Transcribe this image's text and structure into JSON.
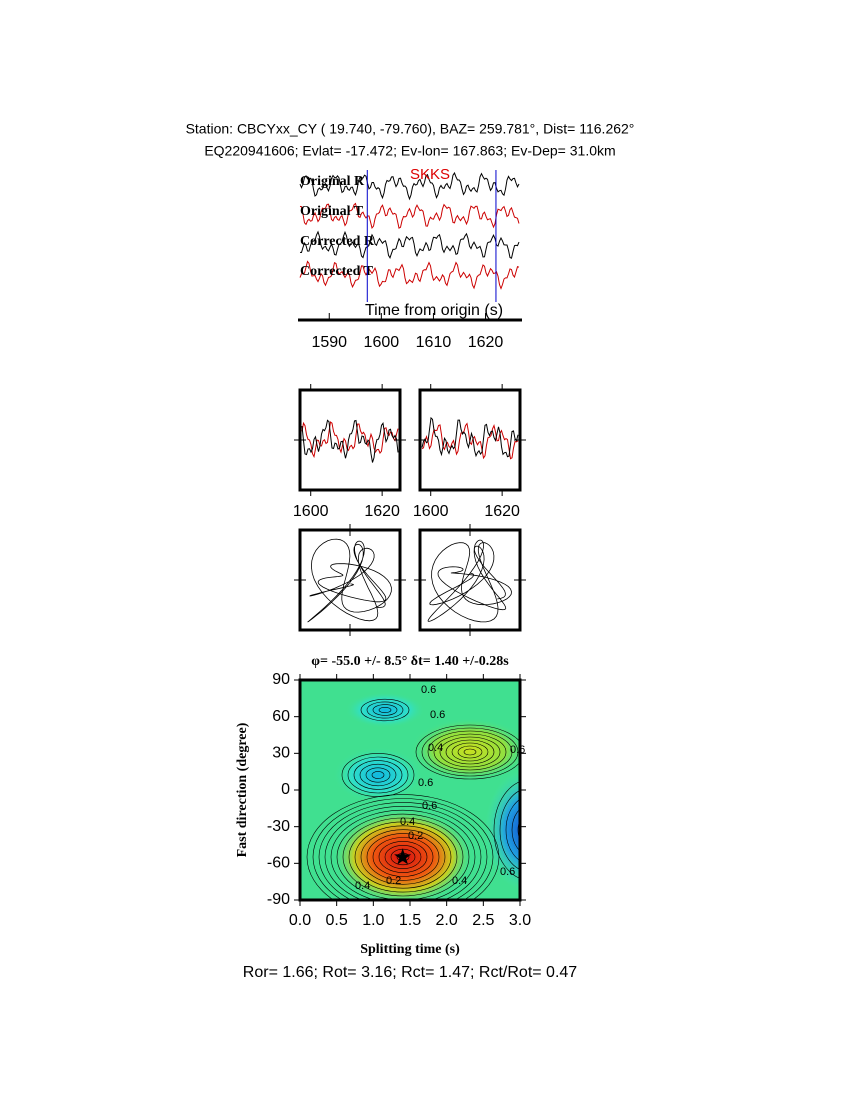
{
  "header": {
    "line1": "Station: CBCYxx_CY (  19.740,  -79.760), BAZ=  259.781°, Dist=  116.262°",
    "line2": "EQ220941606; Evlat= -17.472; Ev-lon= 167.863; Ev-Dep= 31.0km"
  },
  "chart_data": [
    {
      "type": "waveform",
      "phase": "SKKS",
      "phase_color": "#dd0000",
      "xlabel": "Time from origin (s)",
      "xlim": [
        1584,
        1627
      ],
      "xticks": [
        1590,
        1600,
        1610,
        1620
      ],
      "series": [
        {
          "name": "Original R",
          "color": "#000000"
        },
        {
          "name": "Original T",
          "color": "#cc0000"
        },
        {
          "name": "Corrected R",
          "color": "#000000"
        },
        {
          "name": "Corrected T",
          "color": "#cc0000"
        }
      ],
      "window": [
        1597.3,
        1622.0
      ],
      "window_color": "#0000cc"
    },
    {
      "type": "overlay",
      "xlim": [
        1597,
        1625
      ],
      "xticks": [
        1600,
        1620
      ]
    },
    {
      "type": "overlay",
      "xlim": [
        1597,
        1625
      ],
      "xticks": [
        1600,
        1620
      ]
    },
    {
      "type": "contour",
      "title": "φ= -55.0 +/- 8.5° δt= 1.40 +/-0.28s",
      "xlabel": "Splitting time (s)",
      "ylabel": "Fast direction (degree)",
      "xlim": [
        0,
        3
      ],
      "xticks": [
        {
          "value": 0,
          "label": "0.0"
        },
        {
          "value": 0.5,
          "label": "0.5"
        },
        {
          "value": 1,
          "label": "1.0"
        },
        {
          "value": 1.5,
          "label": "1.5"
        },
        {
          "value": 2,
          "label": "2.0"
        },
        {
          "value": 2.5,
          "label": "2.5"
        },
        {
          "value": 3,
          "label": "3.0"
        }
      ],
      "ylim": [
        -90,
        90
      ],
      "yticks": [
        -90,
        -60,
        -30,
        0,
        30,
        60,
        90
      ],
      "marker": {
        "x": 1.4,
        "y": -55
      },
      "contour_labels": [
        "0.6",
        "0.6",
        "0.4",
        "0.6",
        "0.6",
        "0.6",
        "0.4",
        "0.2",
        "0.2",
        "0.4",
        "0.4",
        "0.6"
      ]
    }
  ],
  "footer": "Ror= 1.66; Rot= 3.16; Rct= 1.47; Rct/Rot= 0.47"
}
